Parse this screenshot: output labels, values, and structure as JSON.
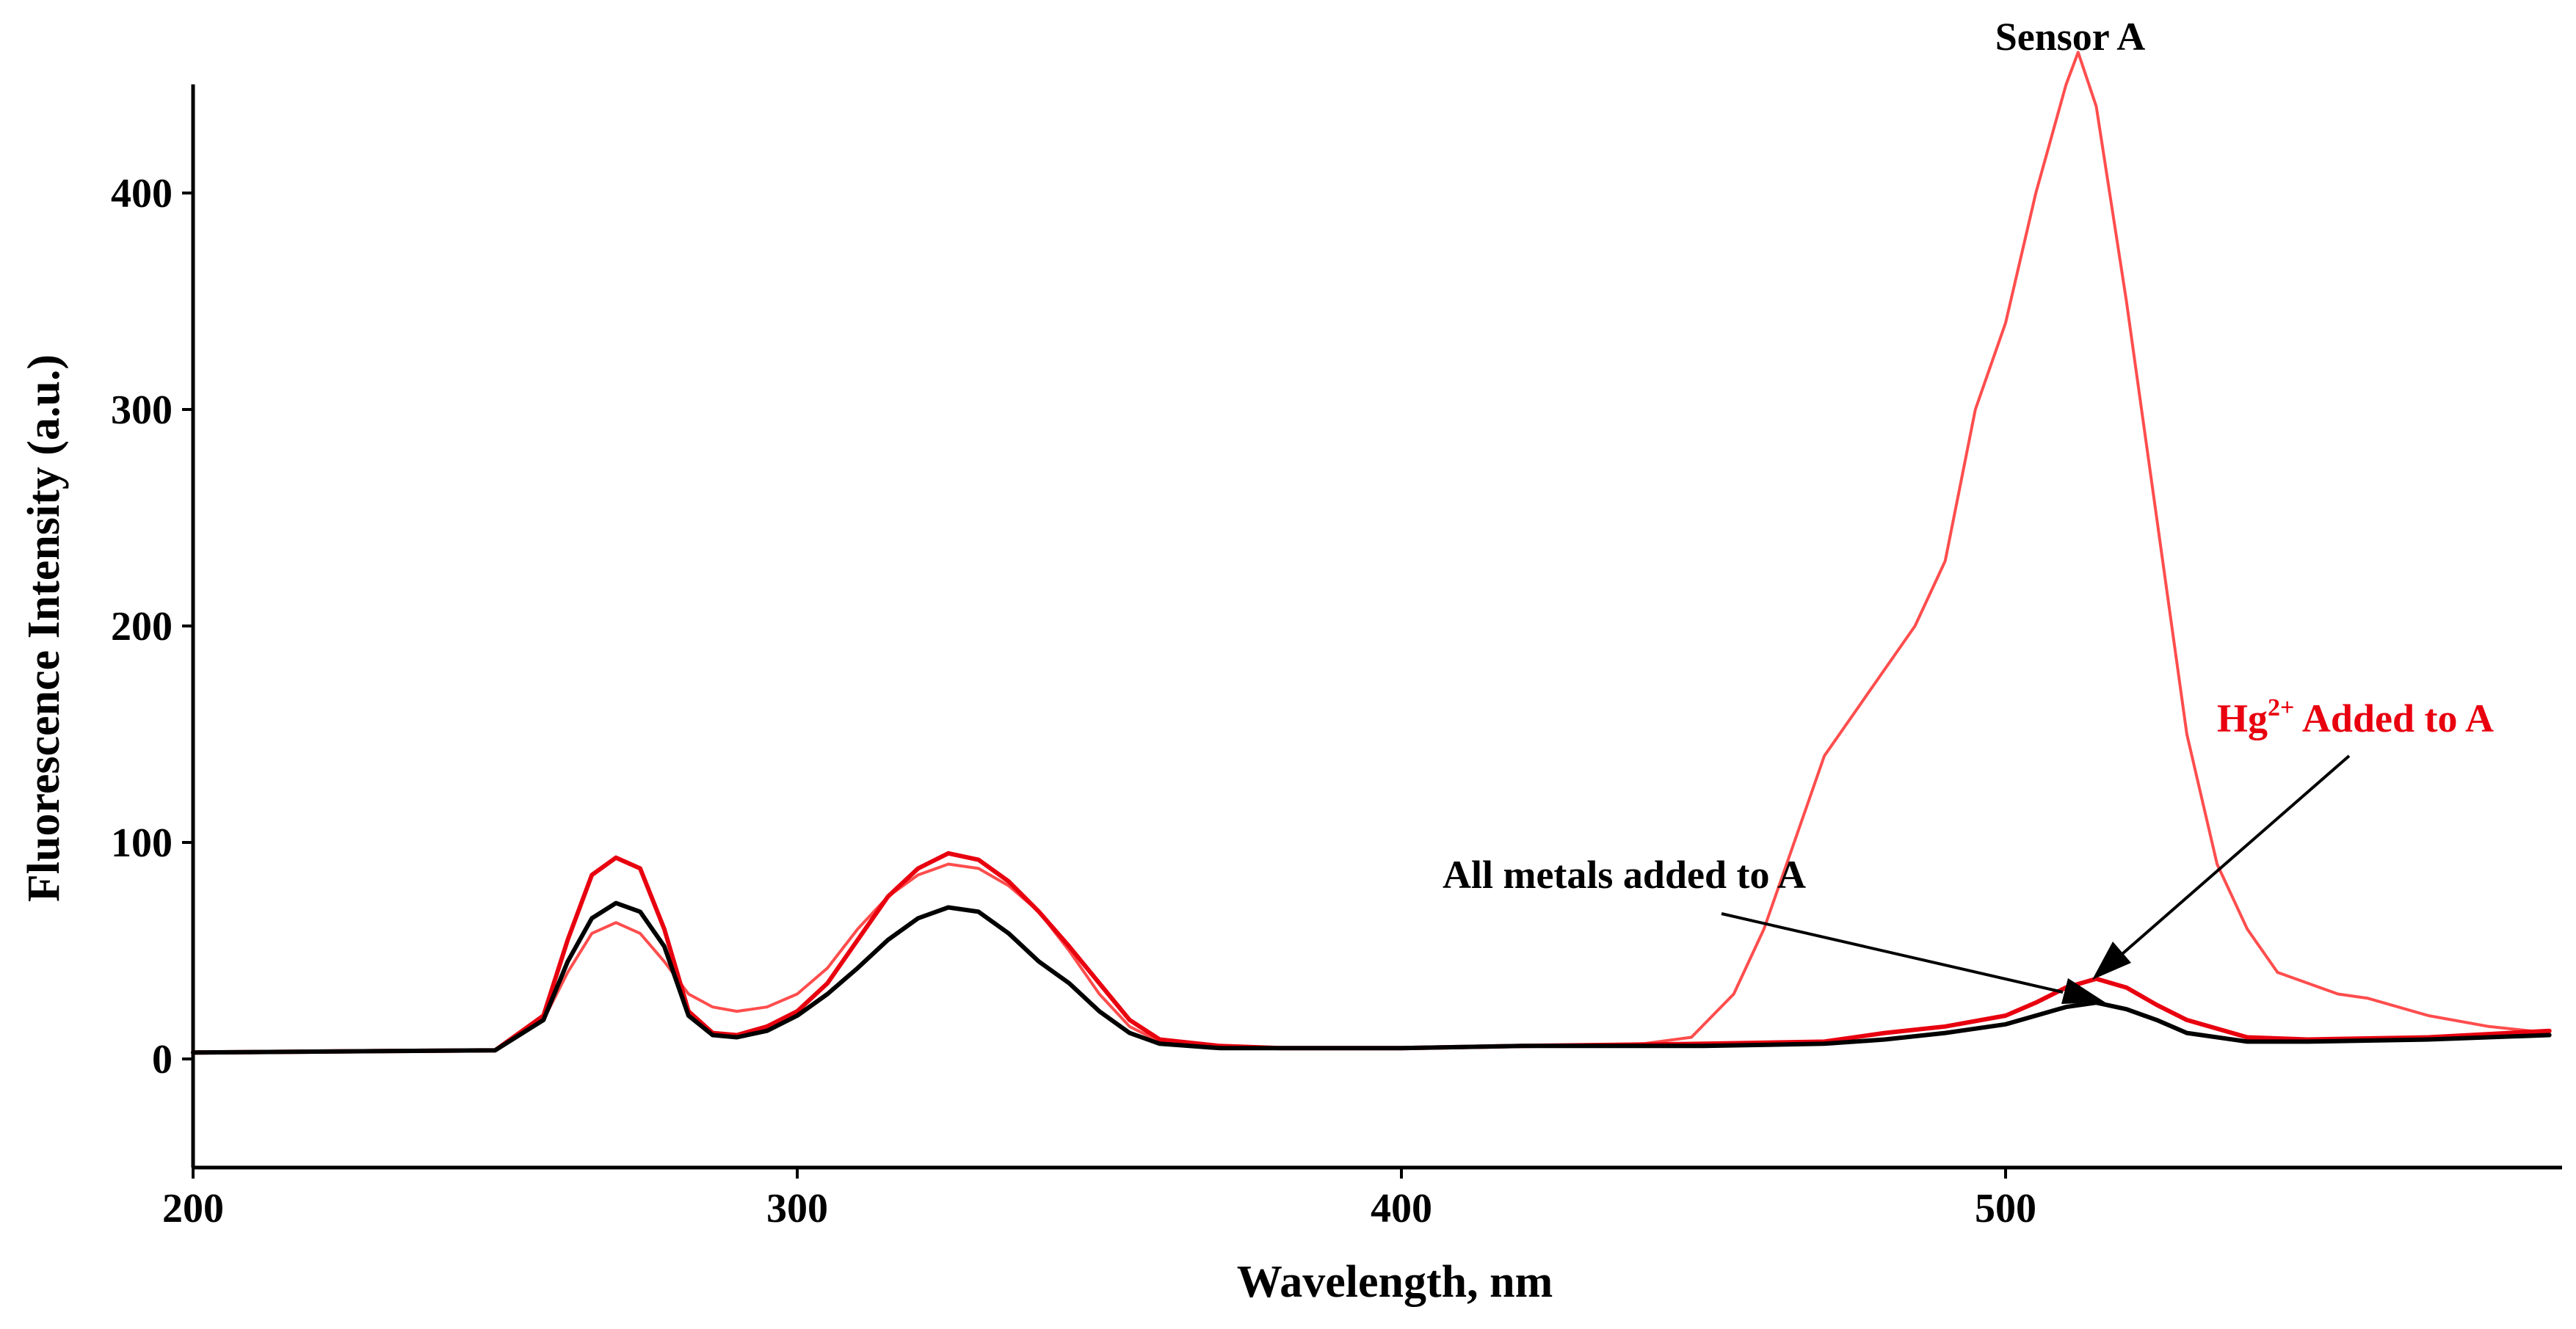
{
  "chart_data": {
    "type": "line",
    "title": "",
    "xlabel": "Wavelength, nm",
    "ylabel": "Fluorescence Intensity (a.u.)",
    "xlim": [
      200,
      590
    ],
    "ylim": [
      -50,
      460
    ],
    "xticks": [
      200,
      300,
      400,
      500
    ],
    "yticks": [
      0,
      100,
      200,
      300,
      400
    ],
    "grid": false,
    "series": [
      {
        "name": "Sensor A",
        "color": "#ff4d4d",
        "width": 4,
        "x": [
          200,
          250,
          258,
          262,
          266,
          270,
          274,
          278,
          282,
          286,
          290,
          295,
          300,
          305,
          310,
          315,
          320,
          325,
          330,
          335,
          340,
          345,
          350,
          355,
          360,
          370,
          380,
          400,
          420,
          440,
          448,
          455,
          460,
          465,
          470,
          475,
          478,
          480,
          485,
          490,
          495,
          500,
          505,
          510,
          512,
          515,
          520,
          525,
          530,
          535,
          540,
          545,
          550,
          555,
          560,
          570,
          580,
          590
        ],
        "y": [
          3,
          4,
          18,
          40,
          58,
          63,
          58,
          45,
          30,
          24,
          22,
          24,
          30,
          42,
          60,
          75,
          85,
          90,
          88,
          80,
          68,
          50,
          30,
          15,
          8,
          6,
          5,
          5,
          6,
          7,
          10,
          30,
          60,
          100,
          140,
          160,
          172,
          180,
          200,
          230,
          300,
          340,
          400,
          450,
          465,
          440,
          350,
          250,
          150,
          90,
          60,
          40,
          35,
          30,
          28,
          20,
          15,
          12
        ]
      },
      {
        "name": "Hg2+ Added to A",
        "color": "#e8000f",
        "width": 6,
        "x": [
          200,
          250,
          258,
          262,
          266,
          270,
          274,
          278,
          282,
          286,
          290,
          295,
          300,
          305,
          310,
          315,
          320,
          325,
          330,
          335,
          340,
          345,
          350,
          355,
          360,
          370,
          380,
          400,
          420,
          450,
          470,
          480,
          490,
          500,
          505,
          510,
          515,
          520,
          525,
          530,
          540,
          550,
          570,
          590
        ],
        "y": [
          3,
          4,
          20,
          55,
          85,
          93,
          88,
          60,
          22,
          12,
          11,
          15,
          22,
          35,
          55,
          75,
          88,
          95,
          92,
          82,
          68,
          52,
          35,
          18,
          9,
          6,
          5,
          5,
          6,
          7,
          8,
          12,
          15,
          20,
          26,
          33,
          37,
          33,
          25,
          18,
          10,
          9,
          10,
          13
        ]
      },
      {
        "name": "All metals added to A",
        "color": "#000000",
        "width": 6,
        "x": [
          200,
          250,
          258,
          262,
          266,
          270,
          274,
          278,
          282,
          286,
          290,
          295,
          300,
          305,
          310,
          315,
          320,
          325,
          330,
          335,
          340,
          345,
          350,
          355,
          360,
          370,
          380,
          400,
          420,
          450,
          470,
          480,
          490,
          500,
          505,
          510,
          515,
          520,
          525,
          530,
          540,
          550,
          570,
          590
        ],
        "y": [
          3,
          4,
          18,
          45,
          65,
          72,
          68,
          52,
          20,
          11,
          10,
          13,
          20,
          30,
          42,
          55,
          65,
          70,
          68,
          58,
          45,
          35,
          22,
          12,
          7,
          5,
          5,
          5,
          6,
          6,
          7,
          9,
          12,
          16,
          20,
          24,
          26,
          23,
          18,
          12,
          8,
          8,
          9,
          11
        ]
      }
    ],
    "annotations": [
      {
        "text": "Sensor A",
        "color": "#000000"
      },
      {
        "text_main": "Hg",
        "text_sup": "2+",
        "text_rest": " Added to A",
        "color": "#e8000f"
      },
      {
        "text": "All metals added to A",
        "color": "#000000"
      }
    ]
  }
}
